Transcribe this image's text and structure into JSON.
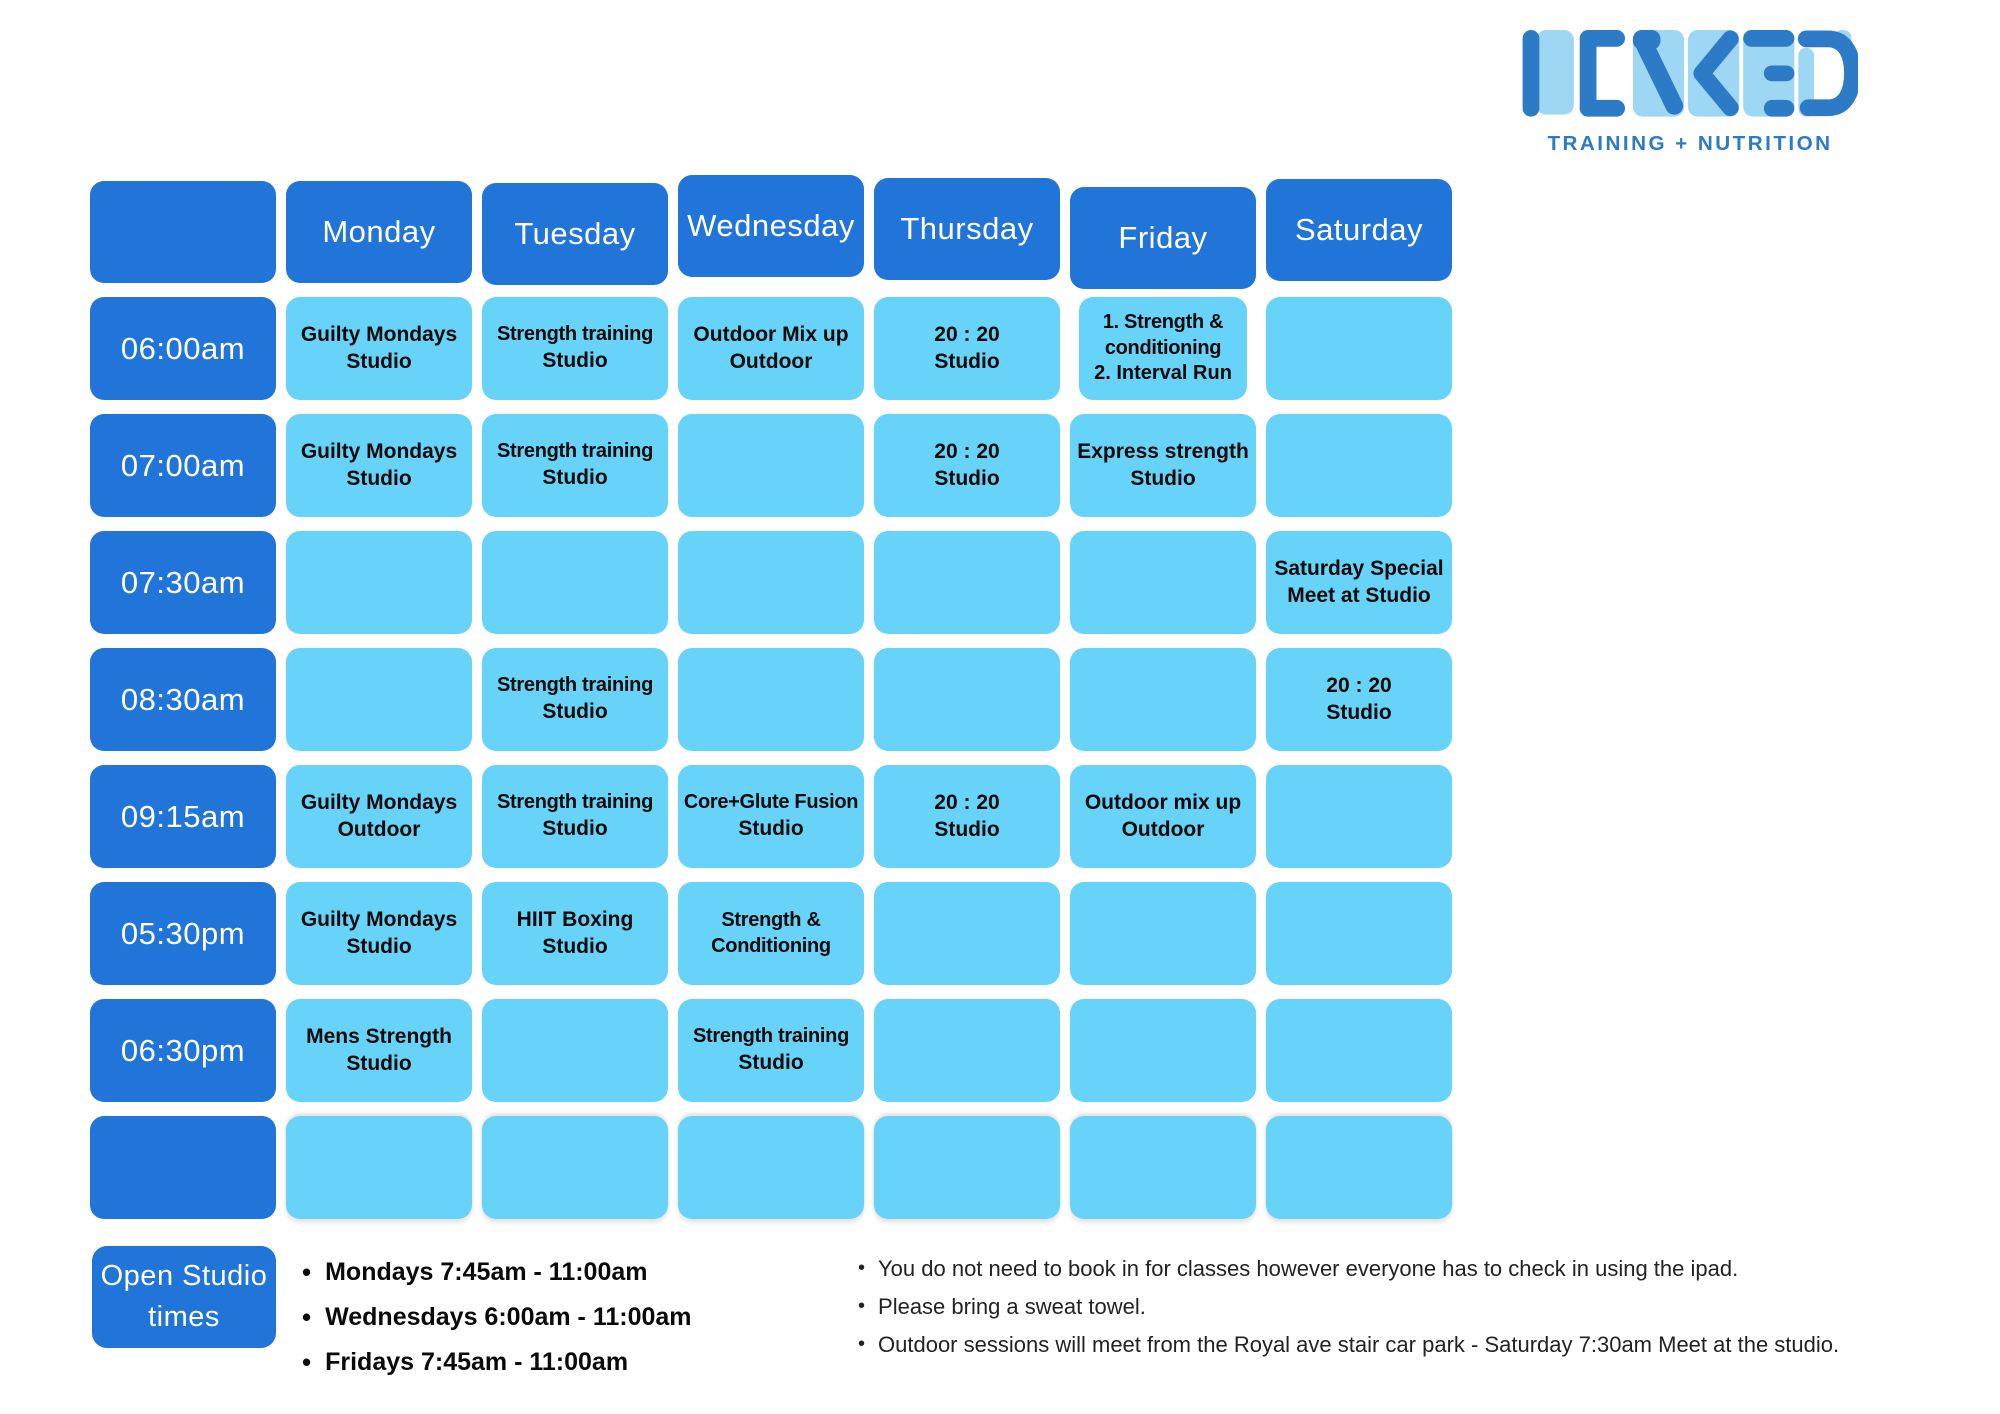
{
  "logo": {
    "word": "LINKED",
    "tagline": "TRAINING + NUTRITION",
    "dark_color": "#2d7ac7",
    "light_color": "#9ed7f4"
  },
  "colors": {
    "header_blue": "#2174d8",
    "cell_blue": "#67d3f8",
    "text_black": "#0a0a0a"
  },
  "table": {
    "days": [
      "Monday",
      "Tuesday",
      "Wednesday",
      "Thursday",
      "Friday",
      "Saturday"
    ],
    "rows": [
      {
        "time": "06:00am",
        "cells": [
          {
            "title": "Guilty Mondays",
            "location": "Studio"
          },
          {
            "title": "Strength training",
            "location": "Studio"
          },
          {
            "title": "Outdoor Mix up",
            "location": "Outdoor"
          },
          {
            "title": "20 : 20",
            "location": "Studio"
          },
          {
            "title": "1. Strength & conditioning",
            "location": "2. Interval Run"
          },
          null
        ]
      },
      {
        "time": "07:00am",
        "cells": [
          {
            "title": "Guilty Mondays",
            "location": "Studio"
          },
          {
            "title": "Strength training",
            "location": "Studio"
          },
          null,
          {
            "title": "20 : 20",
            "location": "Studio"
          },
          {
            "title": "Express strength",
            "location": "Studio"
          },
          null
        ]
      },
      {
        "time": "07:30am",
        "cells": [
          null,
          null,
          null,
          null,
          null,
          {
            "title": "Saturday Special",
            "location": "Meet at Studio"
          }
        ]
      },
      {
        "time": "08:30am",
        "cells": [
          null,
          {
            "title": "Strength training",
            "location": "Studio"
          },
          null,
          null,
          null,
          {
            "title": "20 : 20",
            "location": "Studio"
          }
        ]
      },
      {
        "time": "09:15am",
        "cells": [
          {
            "title": "Guilty Mondays",
            "location": "Outdoor"
          },
          {
            "title": "Strength training",
            "location": "Studio"
          },
          {
            "title": "Core+Glute Fusion",
            "location": "Studio"
          },
          {
            "title": "20 : 20",
            "location": "Studio"
          },
          {
            "title": "Outdoor mix up",
            "location": "Outdoor"
          },
          null
        ]
      },
      {
        "time": "05:30pm",
        "cells": [
          {
            "title": "Guilty Mondays",
            "location": "Studio"
          },
          {
            "title": "HIIT Boxing",
            "location": "Studio"
          },
          {
            "title": "Strength & Conditioning",
            "location": ""
          },
          null,
          null,
          null
        ]
      },
      {
        "time": "06:30pm",
        "cells": [
          {
            "title": "Mens Strength",
            "location": "Studio"
          },
          null,
          {
            "title": "Strength training",
            "location": "Studio"
          },
          null,
          null,
          null
        ]
      },
      {
        "time": "",
        "cells": [
          null,
          null,
          null,
          null,
          null,
          null
        ]
      }
    ]
  },
  "open_studio": {
    "label_line1": "Open Studio",
    "label_line2": "times",
    "times": [
      "Mondays 7:45am - 11:00am",
      "Wednesdays 6:00am - 11:00am",
      "Fridays 7:45am - 11:00am"
    ]
  },
  "notes": [
    "You do not need to book in for classes however everyone has to check in using the ipad.",
    "Please bring a sweat towel.",
    "Outdoor sessions will meet from the Royal ave stair car park - Saturday 7:30am Meet at the studio."
  ]
}
